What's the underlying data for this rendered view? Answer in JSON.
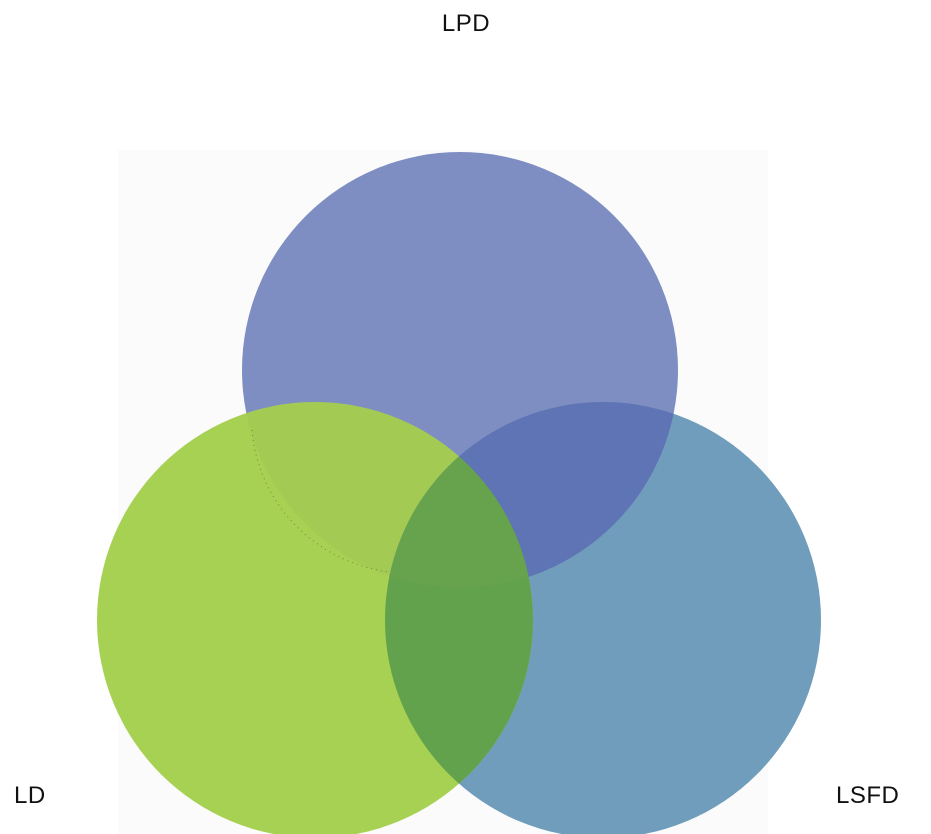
{
  "diagram": {
    "type": "venn",
    "sets": [
      {
        "id": "lpd",
        "label": "LPD",
        "color": "#7f8ec2"
      },
      {
        "id": "ld",
        "label": "LD",
        "color": "#a7d153"
      },
      {
        "id": "lsfd",
        "label": "LSFD",
        "color": "#6f9dbb"
      }
    ],
    "overlap_colors": {
      "lpd_lsfd": "#5f74b4",
      "ld_lsfd": "#62a24c",
      "ld_lpd": "#8fa75c"
    }
  }
}
